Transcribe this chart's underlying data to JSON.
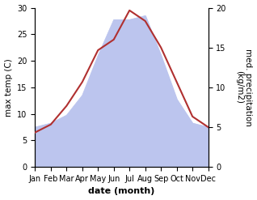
{
  "months": [
    "Jan",
    "Feb",
    "Mar",
    "Apr",
    "May",
    "Jun",
    "Jul",
    "Aug",
    "Sep",
    "Oct",
    "Nov",
    "Dec"
  ],
  "temp": [
    6.5,
    8.0,
    11.5,
    16.0,
    22.0,
    24.0,
    29.5,
    27.5,
    22.5,
    16.0,
    9.5,
    7.5
  ],
  "precip": [
    5.0,
    5.5,
    6.5,
    9.0,
    14.0,
    18.5,
    18.5,
    19.0,
    14.0,
    8.5,
    5.5,
    5.0
  ],
  "temp_color": "#b03030",
  "precip_fill_color": "#bcc5ee",
  "precip_edge_color": "#bcc5ee",
  "temp_ylim": [
    0,
    30
  ],
  "precip_ylim": [
    0,
    20
  ],
  "ylabel_left": "max temp (C)",
  "ylabel_right": "med. precipitation\n(kg/m2)",
  "xlabel": "date (month)",
  "bg_color": "#ffffff",
  "tick_fontsize": 7,
  "label_fontsize": 7.5,
  "xlabel_fontsize": 8
}
